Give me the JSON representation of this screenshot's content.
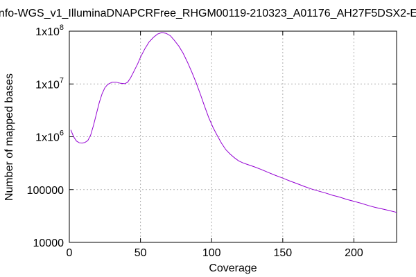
{
  "chart_data": {
    "type": "line",
    "title": "nfo-WGS_v1_IlluminaDNAPCRFree_RHGM00119-210323_A01176_AH27F5DSX2-E",
    "xlabel": "Coverage",
    "ylabel": "Number of mapped bases",
    "xlim": [
      0,
      230
    ],
    "ylim": [
      10000,
      100000000
    ],
    "yscale": "log",
    "grid": true,
    "x_ticks": [
      {
        "value": 0,
        "label": "0"
      },
      {
        "value": 50,
        "label": "50"
      },
      {
        "value": 100,
        "label": "100"
      },
      {
        "value": 150,
        "label": "150"
      },
      {
        "value": 200,
        "label": "200"
      }
    ],
    "y_ticks": [
      {
        "value": 10000,
        "base": "10000",
        "exp": ""
      },
      {
        "value": 100000,
        "base": "100000",
        "exp": ""
      },
      {
        "value": 1000000,
        "base": "1x10",
        "exp": "6"
      },
      {
        "value": 10000000,
        "base": "1x10",
        "exp": "7"
      },
      {
        "value": 100000000,
        "base": "1x10",
        "exp": "8"
      }
    ],
    "line_color": "#9400d3",
    "series": [
      {
        "x": [
          1,
          3,
          5,
          7,
          9,
          11,
          13,
          15,
          17,
          19,
          21,
          23,
          25,
          27,
          30,
          33,
          36,
          39,
          41,
          43,
          45,
          48,
          50,
          53,
          56,
          59,
          62,
          65,
          68,
          71,
          74,
          77,
          80,
          83,
          86,
          89,
          92,
          95,
          98,
          101,
          104,
          107,
          110,
          113,
          116,
          119,
          122,
          125,
          130,
          135,
          140,
          145,
          150,
          155,
          160,
          165,
          170,
          175,
          180,
          185,
          190,
          195,
          200,
          205,
          210,
          215,
          220,
          225,
          230
        ],
        "y": [
          1350000,
          1000000,
          830000,
          770000,
          760000,
          780000,
          850000,
          1080000,
          1650000,
          2700000,
          4400000,
          6500000,
          8500000,
          9800000,
          10800000,
          10800000,
          10300000,
          10100000,
          10800000,
          13000000,
          16500000,
          24000000,
          32000000,
          46000000,
          62000000,
          76000000,
          88000000,
          94000000,
          91000000,
          82000000,
          66000000,
          52000000,
          38000000,
          26000000,
          17000000,
          10800000,
          6500000,
          3800000,
          2300000,
          1500000,
          1050000,
          750000,
          570000,
          470000,
          400000,
          350000,
          320000,
          300000,
          270000,
          240000,
          210000,
          185000,
          165000,
          145000,
          130000,
          115000,
          103000,
          94000,
          86000,
          78000,
          72000,
          65000,
          60000,
          55000,
          50000,
          46000,
          43000,
          40000,
          37000
        ]
      }
    ]
  }
}
